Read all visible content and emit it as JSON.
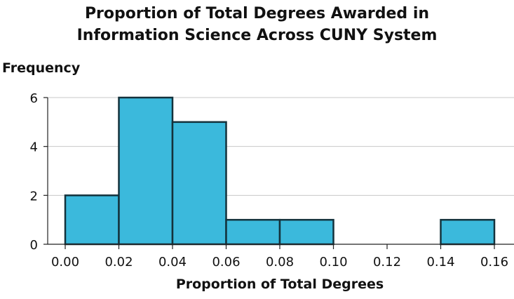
{
  "chart_data": {
    "type": "bar",
    "title": "Proportion of Total Degrees Awarded in Information Science Across CUNY System",
    "title_lines": [
      "Proportion of Total Degrees Awarded in",
      "Information Science Across CUNY System"
    ],
    "xlabel": "Proportion of Total Degrees",
    "ylabel": "Frequency",
    "bins": [
      {
        "start": 0.0,
        "end": 0.02,
        "value": 2
      },
      {
        "start": 0.02,
        "end": 0.04,
        "value": 6
      },
      {
        "start": 0.04,
        "end": 0.06,
        "value": 5
      },
      {
        "start": 0.06,
        "end": 0.08,
        "value": 1
      },
      {
        "start": 0.08,
        "end": 0.1,
        "value": 1
      },
      {
        "start": 0.14,
        "end": 0.16,
        "value": 1
      }
    ],
    "xticks": [
      "0.00",
      "0.02",
      "0.04",
      "0.06",
      "0.08",
      "0.10",
      "0.12",
      "0.14",
      "0.16"
    ],
    "yticks": [
      "0",
      "2",
      "4",
      "6"
    ],
    "xlim": [
      0.0,
      0.16
    ],
    "ylim": [
      0,
      6
    ],
    "grid": "horizontal",
    "legend": "none",
    "bar_color": "#3bb9dc",
    "bar_edge_color": "#14323c"
  }
}
